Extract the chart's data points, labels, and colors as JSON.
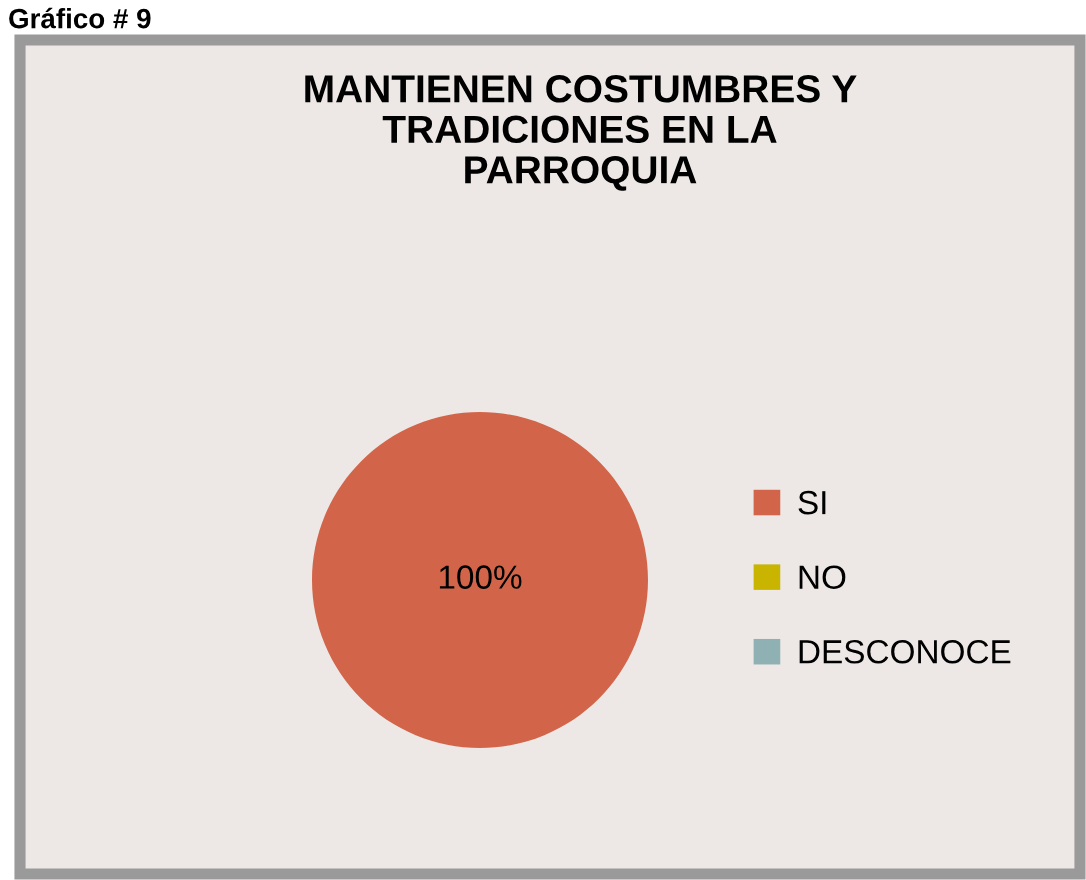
{
  "chart_data": {
    "type": "pie",
    "title": "MANTIENEN COSTUMBRES Y\nTRADICIONES EN LA\nPARROQUIA",
    "annotations": [
      "Gráfico # 9"
    ],
    "categories": [
      "SI",
      "NO",
      "DESCONOCE"
    ],
    "values": [
      100,
      0,
      0
    ],
    "colors": [
      "#d26549",
      "#c9b500",
      "#8fb1b3"
    ],
    "value_labels": [
      "100%",
      null,
      null
    ],
    "legend": "right"
  }
}
